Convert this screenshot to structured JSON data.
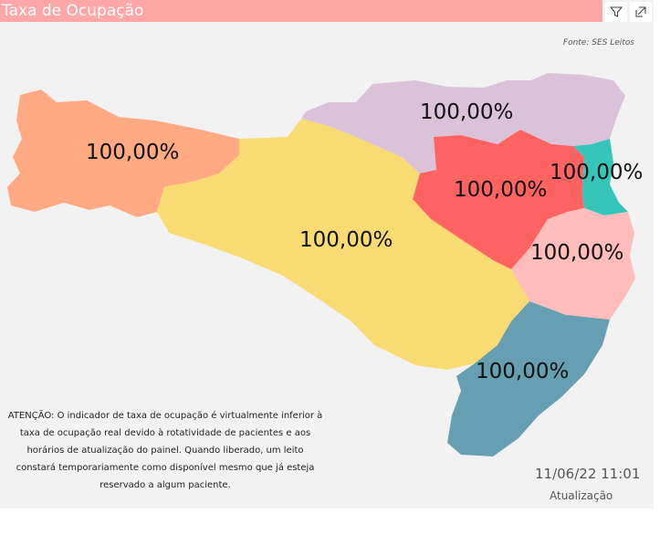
{
  "visual": {
    "title": "Taxa de Ocupação",
    "source": "Fonte: SES Leitos",
    "icons": [
      "filter-icon",
      "focus-mode-icon"
    ],
    "title_bar_color": "#ffa6a6"
  },
  "map": {
    "regions": [
      {
        "id": "far-west",
        "value": "100,00%",
        "color": "#ffaa83"
      },
      {
        "id": "west-midwest",
        "value": "100,00%",
        "color": "#f8dc73"
      },
      {
        "id": "north-plateau",
        "value": "100,00%",
        "color": "#dac3d8"
      },
      {
        "id": "vale-itajai",
        "value": "100,00%",
        "color": "#fd6461"
      },
      {
        "id": "north-coast",
        "value": "100,00%",
        "color": "#36c5b9"
      },
      {
        "id": "greater-florianopolis",
        "value": "100,00%",
        "color": "#ffbdbc"
      },
      {
        "id": "south",
        "value": "100,00%",
        "color": "#659fb1"
      }
    ]
  },
  "notice": "ATENÇÃO: O indicador de taxa de ocupação é virtualmente inferior à taxa de ocupação real devido à rotatividade de pacientes e aos horários de atualização do painel.  Quando liberado, um leito constará temporariamente como disponível mesmo que já esteja reservado a algum paciente.",
  "update": {
    "timestamp": "11/06/22 11:01",
    "label": "Atualização"
  }
}
